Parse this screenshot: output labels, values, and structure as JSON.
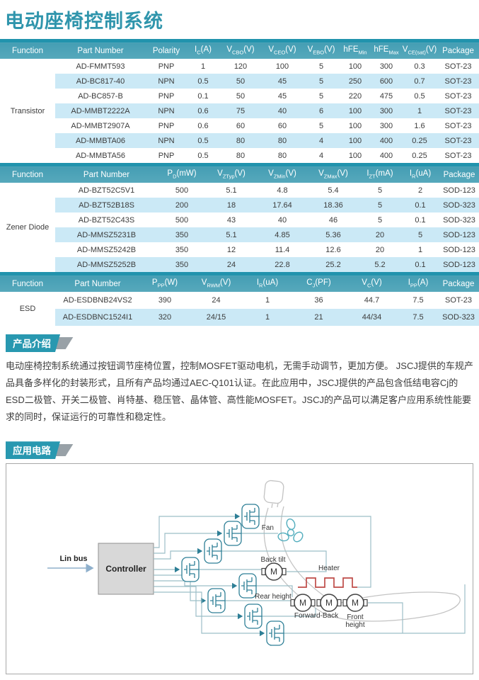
{
  "page": {
    "title": "电动座椅控制系统"
  },
  "colors": {
    "accent_teal": "#2f95ac",
    "table_header": "#4ba1b6",
    "table_header_top_bar": "#2193ad",
    "row_stripe_blue": "#cbe9f6",
    "badge_teal": "#2898b0",
    "badge_gray_tail": "#98a1a7",
    "heater_red": "#bf4b48",
    "wire_gray_teal": "#9cbfc7",
    "mosfet_teal": "#2e7f96"
  },
  "tables": [
    {
      "function": "Transistor",
      "headers": [
        "Function",
        "Part Number",
        "Polarity",
        "I_{C}(A)",
        "V_{CBO}(V)",
        "V_{CEO}(V)",
        "V_{EBO}(V)",
        "hFE_{Min}",
        "hFE_{Max}",
        "V_{CE(sat)}(V)",
        "Package"
      ],
      "rows": [
        [
          "AD-FMMT593",
          "PNP",
          "1",
          "120",
          "100",
          "5",
          "100",
          "300",
          "0.3",
          "SOT-23"
        ],
        [
          "AD-BC817-40",
          "NPN",
          "0.5",
          "50",
          "45",
          "5",
          "250",
          "600",
          "0.7",
          "SOT-23"
        ],
        [
          "AD-BC857-B",
          "PNP",
          "0.1",
          "50",
          "45",
          "5",
          "220",
          "475",
          "0.5",
          "SOT-23"
        ],
        [
          "AD-MMBT2222A",
          "NPN",
          "0.6",
          "75",
          "40",
          "6",
          "100",
          "300",
          "1",
          "SOT-23"
        ],
        [
          "AD-MMBT2907A",
          "PNP",
          "0.6",
          "60",
          "60",
          "5",
          "100",
          "300",
          "1.6",
          "SOT-23"
        ],
        [
          "AD-MMBTA06",
          "NPN",
          "0.5",
          "80",
          "80",
          "4",
          "100",
          "400",
          "0.25",
          "SOT-23"
        ],
        [
          "AD-MMBTA56",
          "PNP",
          "0.5",
          "80",
          "80",
          "4",
          "100",
          "400",
          "0.25",
          "SOT-23"
        ]
      ]
    },
    {
      "function": "Zener Diode",
      "headers": [
        "Function",
        "Part Number",
        "P_{D}(mW)",
        "V_{ZTyp}(V)",
        "V_{ZMin}(V)",
        "V_{ZMax}(V)",
        "I_{ZT}(mA)",
        "I_{R}(uA)",
        "Package"
      ],
      "rows": [
        [
          "AD-BZT52C5V1",
          "500",
          "5.1",
          "4.8",
          "5.4",
          "5",
          "2",
          "SOD-123"
        ],
        [
          "AD-BZT52B18S",
          "200",
          "18",
          "17.64",
          "18.36",
          "5",
          "0.1",
          "SOD-323"
        ],
        [
          "AD-BZT52C43S",
          "500",
          "43",
          "40",
          "46",
          "5",
          "0.1",
          "SOD-323"
        ],
        [
          "AD-MMSZ5231B",
          "350",
          "5.1",
          "4.85",
          "5.36",
          "20",
          "5",
          "SOD-123"
        ],
        [
          "AD-MMSZ5242B",
          "350",
          "12",
          "11.4",
          "12.6",
          "20",
          "1",
          "SOD-123"
        ],
        [
          "AD-MMSZ5252B",
          "350",
          "24",
          "22.8",
          "25.2",
          "5.2",
          "0.1",
          "SOD-123"
        ]
      ]
    },
    {
      "function": "ESD",
      "headers": [
        "Function",
        "Part Number",
        "P_{PP}(W)",
        "V_{RWM}(V)",
        "I_{R}(uA)",
        "C_{J}(PF)",
        "V_{C}(V)",
        "I_{PP}(A)",
        "Package"
      ],
      "rows": [
        [
          "AD-ESDBNB24VS2",
          "390",
          "24",
          "1",
          "36",
          "44.7",
          "7.5",
          "SOT-23"
        ],
        [
          "AD-ESDBNC1524I1",
          "320",
          "24/15",
          "1",
          "21",
          "44/34",
          "7.5",
          "SOD-323"
        ]
      ]
    }
  ],
  "sections": {
    "intro_title": "产品介绍",
    "intro_text": "电动座椅控制系统通过按钮调节座椅位置，控制MOSFET驱动电机，无需手动调节，更加方便。 JSCJ提供的车规产品具备多样化的封装形式，且所有产品均通过AEC-Q101认证。在此应用中，JSCJ提供的产品包含低结电容Cj的ESD二极管、开关二极管、肖特基、稳压管、晶体管、高性能MOSFET。JSCJ的产品可以满足客户应用系统性能要求的同时，保证运行的可靠性和稳定性。",
    "circuit_title": "应用电路"
  },
  "diagram": {
    "labels": {
      "lin_bus": "Lin bus",
      "controller": "Controller",
      "fan": "Fan",
      "back_tilt": "Back tilt",
      "heater": "Heater",
      "rear_height": "Rear height",
      "forward_back": "Forward-Back",
      "front_height_1": "Front",
      "front_height_2": "height",
      "motor": "M"
    }
  }
}
